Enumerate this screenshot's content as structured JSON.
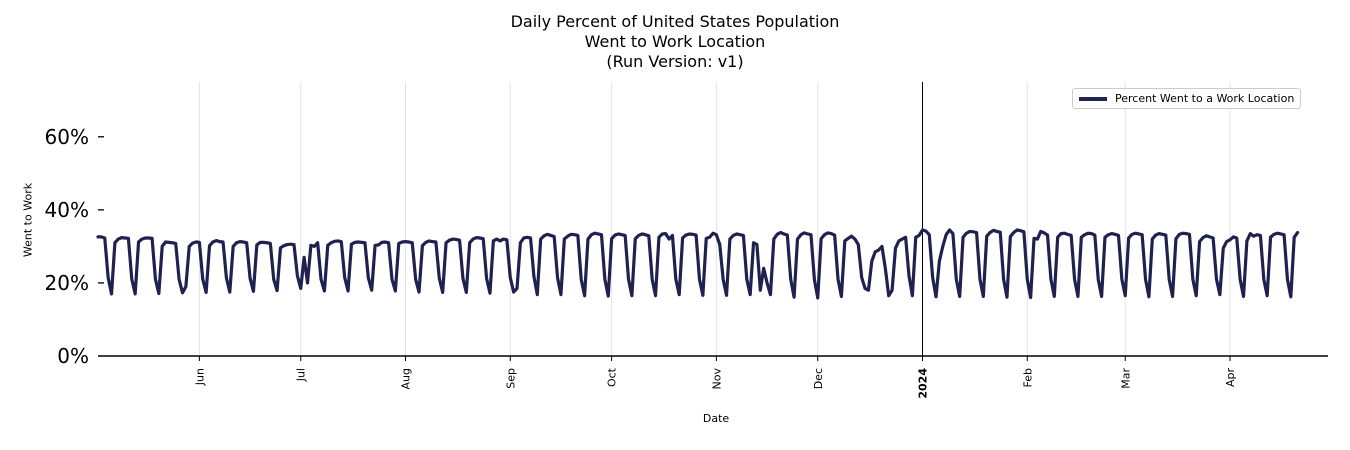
{
  "colors": {
    "series": "#1f2150",
    "grid": "#e3e3e3",
    "axis": "#000000"
  },
  "chart_data": {
    "type": "line",
    "title": [
      "Daily Percent of United States Population",
      "Went to Work Location",
      "(Run Version: v1)"
    ],
    "xlabel": "Date",
    "ylabel": "Went to Work",
    "x_range": [
      "2023-05-02",
      "2024-04-30"
    ],
    "ylim": [
      0,
      75
    ],
    "y_ticks": [
      0,
      20,
      40,
      60
    ],
    "y_tick_labels": [
      "0%",
      "20%",
      "40%",
      "60%"
    ],
    "x_ticks": [
      {
        "date": "2023-06-01",
        "label": "Jun",
        "bold": false
      },
      {
        "date": "2023-07-01",
        "label": "Jul",
        "bold": false
      },
      {
        "date": "2023-08-01",
        "label": "Aug",
        "bold": false
      },
      {
        "date": "2023-09-01",
        "label": "Sep",
        "bold": false
      },
      {
        "date": "2023-10-01",
        "label": "Oct",
        "bold": false
      },
      {
        "date": "2023-11-01",
        "label": "Nov",
        "bold": false
      },
      {
        "date": "2023-12-01",
        "label": "Dec",
        "bold": false
      },
      {
        "date": "2024-01-01",
        "label": "2024",
        "bold": true
      },
      {
        "date": "2024-02-01",
        "label": "Feb",
        "bold": false
      },
      {
        "date": "2024-03-01",
        "label": "Mar",
        "bold": false
      },
      {
        "date": "2024-04-01",
        "label": "Apr",
        "bold": false
      }
    ],
    "vline_date": "2024-01-01",
    "legend": {
      "label": "Percent Went to a Work Location",
      "position": "top-right"
    },
    "series": [
      {
        "name": "Percent Went to a Work Location",
        "start_date": "2023-05-02",
        "weekly_pattern": "Mon..Fri weekday values (~31-34%), Sat ~21%, Sun ~17%",
        "values": [
          32.6,
          32.6,
          32.3,
          21.5,
          17.0,
          31.0,
          32.0,
          32.4,
          32.3,
          32.2,
          21.0,
          17.0,
          31.2,
          32.0,
          32.3,
          32.3,
          32.2,
          21.0,
          17.1,
          30.0,
          31.2,
          31.1,
          31.0,
          30.8,
          21.0,
          17.3,
          19.0,
          30.0,
          30.9,
          31.2,
          31.1,
          21.0,
          17.4,
          30.2,
          31.2,
          31.6,
          31.3,
          31.2,
          21.4,
          17.5,
          30.0,
          31.0,
          31.3,
          31.2,
          31.0,
          21.3,
          17.7,
          30.4,
          31.1,
          31.1,
          31.0,
          30.8,
          21.0,
          17.9,
          29.6,
          30.2,
          30.5,
          30.6,
          30.5,
          22.0,
          18.5,
          27.0,
          20.0,
          30.3,
          30.0,
          31.0,
          21.0,
          17.8,
          30.3,
          31.0,
          31.4,
          31.5,
          31.3,
          21.5,
          17.8,
          30.6,
          31.1,
          31.2,
          31.1,
          31.0,
          21.4,
          18.0,
          30.3,
          30.4,
          31.1,
          31.2,
          31.0,
          21.0,
          17.8,
          30.8,
          31.2,
          31.3,
          31.2,
          31.0,
          21.0,
          17.5,
          30.2,
          31.1,
          31.5,
          31.3,
          31.2,
          21.3,
          17.4,
          31.0,
          31.7,
          32.0,
          31.9,
          31.7,
          21.2,
          17.4,
          31.0,
          32.0,
          32.4,
          32.3,
          32.1,
          21.2,
          17.2,
          31.5,
          32.0,
          31.5,
          32.0,
          31.8,
          21.5,
          17.5,
          18.5,
          31.0,
          32.3,
          32.5,
          32.3,
          21.8,
          16.8,
          32.0,
          32.9,
          33.3,
          33.0,
          32.7,
          21.4,
          16.8,
          32.0,
          32.8,
          33.3,
          33.2,
          33.0,
          21.0,
          16.5,
          32.0,
          33.2,
          33.6,
          33.4,
          33.2,
          21.0,
          16.4,
          32.1,
          33.1,
          33.4,
          33.2,
          33.0,
          21.0,
          16.5,
          32.1,
          33.0,
          33.4,
          33.2,
          32.9,
          21.0,
          16.5,
          32.5,
          33.4,
          33.5,
          32.0,
          33.0,
          21.0,
          16.8,
          32.3,
          33.1,
          33.4,
          33.3,
          33.1,
          21.0,
          16.6,
          32.2,
          32.5,
          33.6,
          33.2,
          30.5,
          21.0,
          16.6,
          32.0,
          33.0,
          33.4,
          33.2,
          33.0,
          21.0,
          16.8,
          31.0,
          30.5,
          18.0,
          24.0,
          20.0,
          16.8,
          32.0,
          33.3,
          33.8,
          33.4,
          33.1,
          21.0,
          16.1,
          32.0,
          33.2,
          33.7,
          33.4,
          33.2,
          21.0,
          15.9,
          32.1,
          33.2,
          33.7,
          33.5,
          33.1,
          21.0,
          16.3,
          31.5,
          32.2,
          32.8,
          32.0,
          30.5,
          21.5,
          18.5,
          18.0,
          26.0,
          28.5,
          29.0,
          30.0,
          24.0,
          16.5,
          18.0,
          29.5,
          31.5,
          32.0,
          32.5,
          22.0,
          16.5,
          32.5,
          33.0,
          34.5,
          34.2,
          33.2,
          21.5,
          16.2,
          26.0,
          30.0,
          33.2,
          34.5,
          33.5,
          21.0,
          16.3,
          32.5,
          33.6,
          34.1,
          34.0,
          33.8,
          21.0,
          16.3,
          32.8,
          33.8,
          34.4,
          34.1,
          33.9,
          21.0,
          16.1,
          32.7,
          33.8,
          34.5,
          34.3,
          34.0,
          21.0,
          16.0,
          32.2,
          32.0,
          34.1,
          33.7,
          33.1,
          21.0,
          16.3,
          32.5,
          33.5,
          33.6,
          33.3,
          33.0,
          21.0,
          16.3,
          32.5,
          33.2,
          33.6,
          33.5,
          33.1,
          21.0,
          16.3,
          32.5,
          33.2,
          33.5,
          33.3,
          33.0,
          21.0,
          16.5,
          32.3,
          33.3,
          33.6,
          33.4,
          33.2,
          21.0,
          16.2,
          32.0,
          33.1,
          33.5,
          33.3,
          33.1,
          21.0,
          16.3,
          32.1,
          33.3,
          33.6,
          33.5,
          33.3,
          21.0,
          16.5,
          31.3,
          32.4,
          32.9,
          32.6,
          32.3,
          21.0,
          16.8,
          29.5,
          31.3,
          31.8,
          32.6,
          32.3,
          21.0,
          16.3,
          31.5,
          33.5,
          32.8,
          33.2,
          33.0,
          21.0,
          16.5,
          32.5,
          33.3,
          33.6,
          33.4,
          33.2,
          21.0,
          16.2,
          32.5,
          33.8
        ]
      }
    ]
  }
}
